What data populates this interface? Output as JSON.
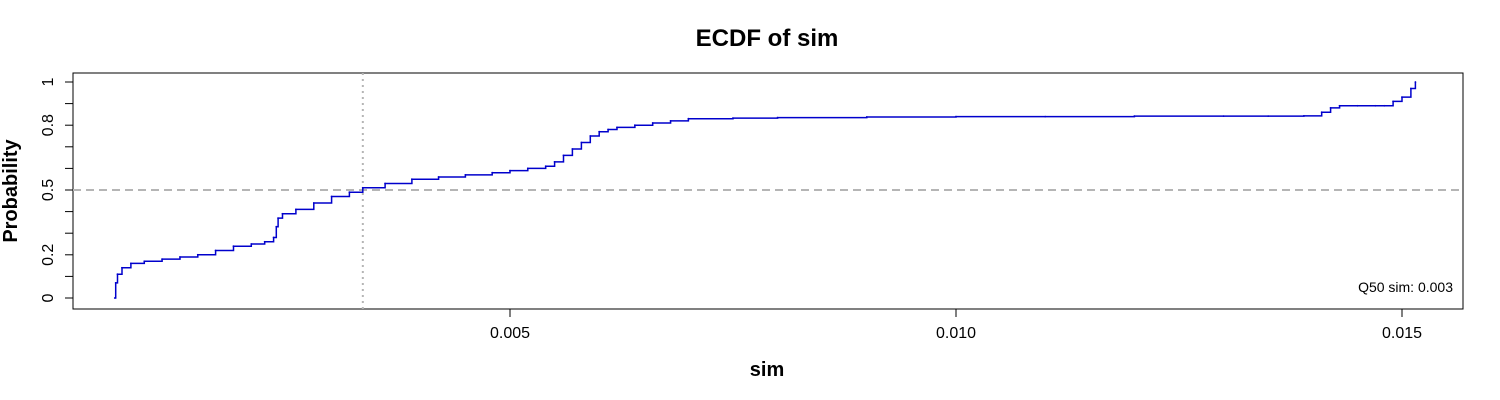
{
  "chart_data": {
    "type": "line",
    "title": "ECDF of sim",
    "xlabel": "sim",
    "ylabel": "Probability",
    "xlim": [
      0.0,
      0.0156
    ],
    "ylim": [
      0,
      1
    ],
    "x_ticks": [
      0.005,
      0.01,
      0.015
    ],
    "x_tick_labels": [
      "0.005",
      "0.010",
      "0.015"
    ],
    "y_ticks": [
      0,
      0.2,
      0.5,
      0.8,
      1
    ],
    "y_tick_labels": [
      "0",
      "0.2",
      "0.5",
      "0.8",
      "1"
    ],
    "y_minor_ticks": [
      0,
      0.1,
      0.2,
      0.3,
      0.4,
      0.5,
      0.6,
      0.7,
      0.8,
      0.9,
      1.0
    ],
    "grid": false,
    "reference_lines": {
      "hline_y": 0.5,
      "vline_x": 0.00335
    },
    "annotation": "Q50 sim:  0.003",
    "series_color": "#0000cc",
    "ref_line_color": "#b5b5b5",
    "series": [
      {
        "x": [
          0.00057,
          0.00058,
          0.0006,
          0.00065,
          0.00075,
          0.0009,
          0.0011,
          0.0013,
          0.0015,
          0.0017,
          0.0019,
          0.0021,
          0.00225,
          0.00235,
          0.00238,
          0.0024,
          0.00245,
          0.0026,
          0.0028,
          0.003,
          0.0032,
          0.00335,
          0.0036,
          0.0039,
          0.0042,
          0.0045,
          0.0048,
          0.005,
          0.0052,
          0.0054,
          0.0055,
          0.0056,
          0.0057,
          0.0058,
          0.0059,
          0.006,
          0.0061,
          0.0062,
          0.0064,
          0.0066,
          0.0068,
          0.007,
          0.0075,
          0.008,
          0.009,
          0.01,
          0.011,
          0.012,
          0.013,
          0.0135,
          0.0139,
          0.0141,
          0.0142,
          0.0143,
          0.0145,
          0.0147,
          0.0148,
          0.0149,
          0.015,
          0.0151,
          0.01515
        ],
        "y": [
          0.0,
          0.07,
          0.11,
          0.14,
          0.16,
          0.17,
          0.18,
          0.19,
          0.2,
          0.22,
          0.24,
          0.25,
          0.26,
          0.28,
          0.33,
          0.37,
          0.39,
          0.41,
          0.44,
          0.47,
          0.49,
          0.51,
          0.53,
          0.55,
          0.56,
          0.57,
          0.58,
          0.59,
          0.6,
          0.61,
          0.63,
          0.66,
          0.69,
          0.72,
          0.75,
          0.77,
          0.78,
          0.79,
          0.8,
          0.81,
          0.82,
          0.83,
          0.833,
          0.835,
          0.838,
          0.84,
          0.84,
          0.842,
          0.842,
          0.842,
          0.843,
          0.86,
          0.88,
          0.89,
          0.89,
          0.89,
          0.89,
          0.91,
          0.93,
          0.97,
          1.0
        ]
      }
    ]
  }
}
